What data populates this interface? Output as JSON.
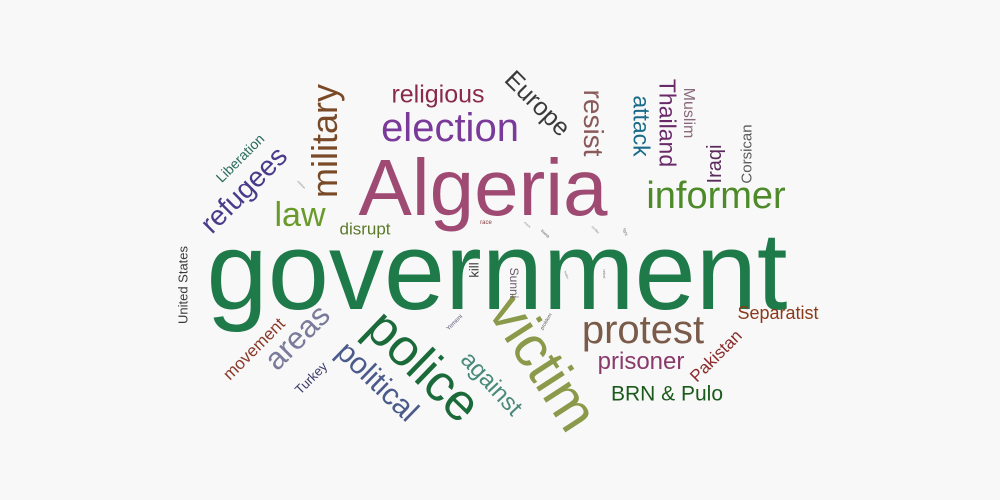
{
  "words": [
    {
      "text": "government",
      "color": "#1f7a4a"
    },
    {
      "text": "Algeria",
      "color": "#9e4a72"
    },
    {
      "text": "victim",
      "color": "#8a9a4a"
    },
    {
      "text": "police",
      "color": "#1b6b3a"
    },
    {
      "text": "election",
      "color": "#7a3a9a"
    },
    {
      "text": "informer",
      "color": "#4e8a2a"
    },
    {
      "text": "protest",
      "color": "#7a5a48"
    },
    {
      "text": "military",
      "color": "#7a4a28"
    },
    {
      "text": "political",
      "color": "#4a5a8a"
    },
    {
      "text": "refugees",
      "color": "#4a3a8a"
    },
    {
      "text": "law",
      "color": "#6a9a2a"
    },
    {
      "text": "areas",
      "color": "#7a7a9a"
    },
    {
      "text": "religious",
      "color": "#8a2a4a"
    },
    {
      "text": "Europe",
      "color": "#3a3a3a"
    },
    {
      "text": "resist",
      "color": "#8a5a5a"
    },
    {
      "text": "Thailand",
      "color": "#6a2a6a"
    },
    {
      "text": "attack",
      "color": "#1a6a8a"
    },
    {
      "text": "Muslim",
      "color": "#8a6a7a"
    },
    {
      "text": "Iraqi",
      "color": "#5a2a5a"
    },
    {
      "text": "Corsican",
      "color": "#5a5a5a"
    },
    {
      "text": "Liberation",
      "color": "#2a6a5a"
    },
    {
      "text": "disrupt",
      "color": "#5a7a2a"
    },
    {
      "text": "United States",
      "color": "#3a3a3a"
    },
    {
      "text": "movement",
      "color": "#8a3a2a"
    },
    {
      "text": "Turkey",
      "color": "#3a3a6a"
    },
    {
      "text": "against",
      "color": "#4a8a7a"
    },
    {
      "text": "prisoner",
      "color": "#8a3a6a"
    },
    {
      "text": "Separatist",
      "color": "#8a3a1a"
    },
    {
      "text": "Pakistan",
      "color": "#8a2a2a"
    },
    {
      "text": "BRN & Pulo",
      "color": "#1a5a1a"
    },
    {
      "text": "kill",
      "color": "#3a3a3a"
    },
    {
      "text": "Sunni",
      "color": "#6a5a6a"
    },
    {
      "text": "Yemeni",
      "color": "#5a5a7a"
    },
    {
      "text": "problem",
      "color": "#5a5a5a"
    },
    {
      "text": "race",
      "color": "#8a3a3a"
    },
    {
      "text": "bomb",
      "color": "#5a5a5a"
    },
    {
      "text": "mission",
      "color": "#7a7a7a"
    },
    {
      "text": "event",
      "color": "#7a7a7a"
    },
    {
      "text": "rebel",
      "color": "#7a7a7a"
    },
    {
      "text": "fight",
      "color": "#7a7a7a"
    },
    {
      "text": "leader",
      "color": "#7a7a7a"
    },
    {
      "text": "conflict",
      "color": "#7a7a7a"
    }
  ]
}
